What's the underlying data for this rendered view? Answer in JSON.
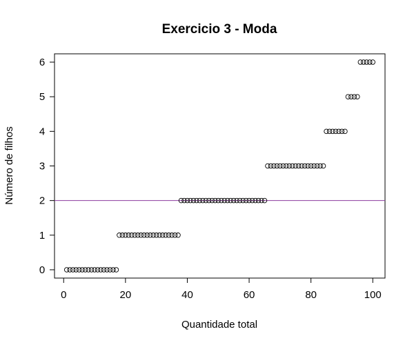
{
  "chart_data": {
    "type": "scatter",
    "title": "Exercicio 3 - Moda",
    "xlabel": "Quantidade total",
    "ylabel": "Número de filhos",
    "xlim": [
      -2.96,
      103.96
    ],
    "ylim": [
      -0.24,
      6.24
    ],
    "xticks": [
      0,
      20,
      40,
      60,
      80,
      100
    ],
    "yticks": [
      0,
      1,
      2,
      3,
      4,
      5,
      6
    ],
    "groups": [
      {
        "y": 0,
        "x_start": 1,
        "x_end": 17
      },
      {
        "y": 1,
        "x_start": 18,
        "x_end": 37
      },
      {
        "y": 2,
        "x_start": 38,
        "x_end": 65
      },
      {
        "y": 3,
        "x_start": 66,
        "x_end": 84
      },
      {
        "y": 4,
        "x_start": 85,
        "x_end": 91
      },
      {
        "y": 5,
        "x_start": 92,
        "x_end": 95
      },
      {
        "y": 6,
        "x_start": 96,
        "x_end": 100
      }
    ],
    "mode_line": {
      "y": 2,
      "color": "#8B3A9E"
    },
    "grid": false,
    "legend": "none"
  }
}
